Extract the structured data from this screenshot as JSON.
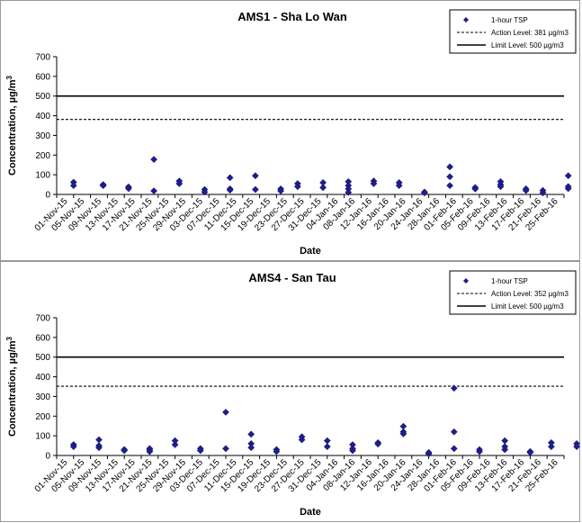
{
  "chart_data": [
    {
      "type": "scatter",
      "title": "AMS1 - Sha Lo Wan",
      "xlabel": "Date",
      "ylabel": "Concentration, µg/m",
      "ylabel_sup": "3",
      "ylim": [
        0,
        700
      ],
      "yticks": [
        "0",
        "100",
        "200",
        "300",
        "400",
        "500",
        "600",
        "700"
      ],
      "x_ticks": [
        "01-Nov-15",
        "05-Nov-15",
        "09-Nov-15",
        "13-Nov-15",
        "17-Nov-15",
        "21-Nov-15",
        "25-Nov-15",
        "29-Nov-15",
        "03-Dec-15",
        "07-Dec-15",
        "11-Dec-15",
        "15-Dec-15",
        "19-Dec-15",
        "23-Dec-15",
        "27-Dec-15",
        "31-Dec-15",
        "04-Jan-16",
        "08-Jan-16",
        "12-Jan-16",
        "16-Jan-16",
        "20-Jan-16",
        "24-Jan-16",
        "28-Jan-16",
        "01-Feb-16",
        "05-Feb-16",
        "09-Feb-16",
        "13-Feb-16",
        "17-Feb-16",
        "21-Feb-16",
        "25-Feb-16"
      ],
      "legend": {
        "placement": "top-right",
        "entries": [
          "1-hour TSP",
          "Action Level: 381 µg/m3",
          "Limit Level: 500 µg/m3"
        ]
      },
      "action_level": 381,
      "limit_level": 500,
      "series": [
        {
          "name": "1-hour TSP",
          "points": [
            [
              "03-Nov-15",
              62
            ],
            [
              "03-Nov-15",
              45
            ],
            [
              "10-Nov-15",
              50
            ],
            [
              "10-Nov-15",
              45
            ],
            [
              "16-Nov-15",
              38
            ],
            [
              "16-Nov-15",
              30
            ],
            [
              "22-Nov-15",
              178
            ],
            [
              "22-Nov-15",
              18
            ],
            [
              "28-Nov-15",
              68
            ],
            [
              "28-Nov-15",
              55
            ],
            [
              "04-Dec-15",
              25
            ],
            [
              "04-Dec-15",
              12
            ],
            [
              "10-Dec-15",
              85
            ],
            [
              "10-Dec-15",
              28
            ],
            [
              "10-Dec-15",
              22
            ],
            [
              "16-Dec-15",
              95
            ],
            [
              "16-Dec-15",
              25
            ],
            [
              "22-Dec-15",
              28
            ],
            [
              "22-Dec-15",
              18
            ],
            [
              "26-Dec-15",
              55
            ],
            [
              "26-Dec-15",
              40
            ],
            [
              "01-Jan-16",
              60
            ],
            [
              "01-Jan-16",
              35
            ],
            [
              "07-Jan-16",
              65
            ],
            [
              "07-Jan-16",
              45
            ],
            [
              "07-Jan-16",
              28
            ],
            [
              "07-Jan-16",
              10
            ],
            [
              "13-Jan-16",
              68
            ],
            [
              "13-Jan-16",
              55
            ],
            [
              "19-Jan-16",
              60
            ],
            [
              "19-Jan-16",
              45
            ],
            [
              "25-Jan-16",
              12
            ],
            [
              "25-Jan-16",
              8
            ],
            [
              "31-Jan-16",
              140
            ],
            [
              "31-Jan-16",
              90
            ],
            [
              "31-Jan-16",
              45
            ],
            [
              "06-Feb-16",
              35
            ],
            [
              "06-Feb-16",
              28
            ],
            [
              "12-Feb-16",
              65
            ],
            [
              "12-Feb-16",
              50
            ],
            [
              "12-Feb-16",
              40
            ],
            [
              "18-Feb-16",
              28
            ],
            [
              "18-Feb-16",
              20
            ],
            [
              "22-Feb-16",
              20
            ],
            [
              "22-Feb-16",
              8
            ],
            [
              "28-Feb-16",
              95
            ],
            [
              "28-Feb-16",
              40
            ],
            [
              "28-Feb-16",
              30
            ]
          ]
        }
      ]
    },
    {
      "type": "scatter",
      "title": "AMS4 - San Tau",
      "xlabel": "Date",
      "ylabel": "Concentration, µg/m",
      "ylabel_sup": "3",
      "ylim": [
        0,
        700
      ],
      "yticks": [
        "0",
        "100",
        "200",
        "300",
        "400",
        "500",
        "600",
        "700"
      ],
      "x_ticks": [
        "01-Nov-15",
        "05-Nov-15",
        "09-Nov-15",
        "13-Nov-15",
        "17-Nov-15",
        "21-Nov-15",
        "25-Nov-15",
        "29-Nov-15",
        "03-Dec-15",
        "07-Dec-15",
        "11-Dec-15",
        "15-Dec-15",
        "19-Dec-15",
        "23-Dec-15",
        "27-Dec-15",
        "31-Dec-15",
        "04-Jan-16",
        "08-Jan-16",
        "12-Jan-16",
        "16-Jan-16",
        "20-Jan-16",
        "24-Jan-16",
        "28-Jan-16",
        "01-Feb-16",
        "05-Feb-16",
        "09-Feb-16",
        "13-Feb-16",
        "17-Feb-16",
        "21-Feb-16",
        "25-Feb-16"
      ],
      "legend": {
        "placement": "top-right",
        "entries": [
          "1-hour TSP",
          "Action Level: 352 µg/m3",
          "Limit Level: 500 µg/m3"
        ]
      },
      "action_level": 352,
      "limit_level": 500,
      "series": [
        {
          "name": "1-hour TSP",
          "points": [
            [
              "03-Nov-15",
              55
            ],
            [
              "03-Nov-15",
              45
            ],
            [
              "09-Nov-15",
              80
            ],
            [
              "09-Nov-15",
              50
            ],
            [
              "09-Nov-15",
              40
            ],
            [
              "15-Nov-15",
              30
            ],
            [
              "15-Nov-15",
              25
            ],
            [
              "21-Nov-15",
              35
            ],
            [
              "21-Nov-15",
              28
            ],
            [
              "21-Nov-15",
              20
            ],
            [
              "27-Nov-15",
              75
            ],
            [
              "27-Nov-15",
              55
            ],
            [
              "03-Dec-15",
              35
            ],
            [
              "03-Dec-15",
              25
            ],
            [
              "09-Dec-15",
              220
            ],
            [
              "09-Dec-15",
              35
            ],
            [
              "15-Dec-15",
              108
            ],
            [
              "15-Dec-15",
              60
            ],
            [
              "15-Dec-15",
              40
            ],
            [
              "21-Dec-15",
              30
            ],
            [
              "21-Dec-15",
              20
            ],
            [
              "27-Dec-15",
              95
            ],
            [
              "27-Dec-15",
              80
            ],
            [
              "02-Jan-16",
              75
            ],
            [
              "02-Jan-16",
              45
            ],
            [
              "08-Jan-16",
              55
            ],
            [
              "08-Jan-16",
              35
            ],
            [
              "08-Jan-16",
              25
            ],
            [
              "14-Jan-16",
              65
            ],
            [
              "14-Jan-16",
              58
            ],
            [
              "20-Jan-16",
              148
            ],
            [
              "20-Jan-16",
              120
            ],
            [
              "20-Jan-16",
              110
            ],
            [
              "26-Jan-16",
              15
            ],
            [
              "26-Jan-16",
              8
            ],
            [
              "01-Feb-16",
              342
            ],
            [
              "01-Feb-16",
              120
            ],
            [
              "01-Feb-16",
              35
            ],
            [
              "07-Feb-16",
              30
            ],
            [
              "07-Feb-16",
              20
            ],
            [
              "13-Feb-16",
              75
            ],
            [
              "13-Feb-16",
              45
            ],
            [
              "13-Feb-16",
              30
            ],
            [
              "19-Feb-16",
              20
            ],
            [
              "19-Feb-16",
              15
            ],
            [
              "24-Feb-16",
              65
            ],
            [
              "24-Feb-16",
              45
            ],
            [
              "01-Mar-16",
              60
            ],
            [
              "01-Mar-16",
              45
            ]
          ]
        }
      ]
    }
  ]
}
